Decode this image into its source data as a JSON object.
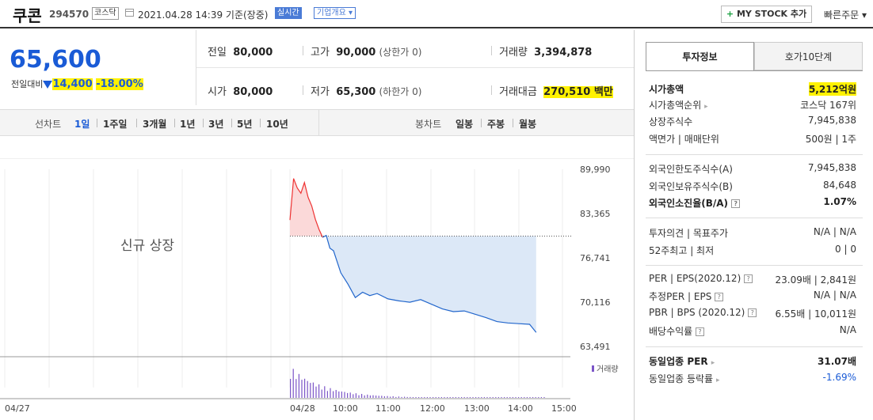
{
  "header": {
    "name": "쿠콘",
    "code": "294570",
    "market": "코스닥",
    "datetime": "2021.04.28 14:39 기준(장중)",
    "realtime": "실시간",
    "corp_info": "기업개요 ▾",
    "mystock_label": "MY STOCK 추가",
    "quick_order": "빠른주문 ▾"
  },
  "price": {
    "current": "65,600",
    "change_label": "전일대비",
    "change": "14,400",
    "change_pct": "-18.00%"
  },
  "summary": {
    "prev_label": "전일",
    "prev": "80,000",
    "high_label": "고가",
    "high": "90,000",
    "high_note": "(상한가 0)",
    "volume_label": "거래량",
    "volume": "3,394,878",
    "open_label": "시가",
    "open": "80,000",
    "low_label": "저가",
    "low": "65,300",
    "low_note": "(하한가 0)",
    "amount_label": "거래대금",
    "amount": "270,510",
    "amount_unit": "백만"
  },
  "period_tabs": {
    "line_label": "선차트",
    "line": [
      "1일",
      "1주일",
      "3개월",
      "1년",
      "3년",
      "5년",
      "10년"
    ],
    "candle_label": "봉차트",
    "candle": [
      "일봉",
      "주봉",
      "월봉"
    ]
  },
  "chart_data": {
    "type": "line",
    "annotation": "신규 상장",
    "yticks": [
      "89,990",
      "83,365",
      "76,741",
      "70,116",
      "63,491"
    ],
    "ylim": [
      63491,
      89990
    ],
    "xticks": [
      "04/27",
      "04/28",
      "10:00",
      "11:00",
      "12:00",
      "13:00",
      "14:00",
      "15:00"
    ],
    "reference_price": 80000,
    "volume_label": "거래량",
    "series": [
      {
        "name": "",
        "x": [
          "09:00",
          "09:05",
          "09:10",
          "09:15",
          "09:20",
          "09:25",
          "09:30",
          "09:35",
          "09:40",
          "09:45",
          "09:50",
          "09:55",
          "10:00",
          "10:10",
          "10:20",
          "10:30",
          "10:40",
          "10:50",
          "11:00",
          "11:15",
          "11:30",
          "11:45",
          "12:00",
          "12:15",
          "12:30",
          "12:45",
          "13:00",
          "13:15",
          "13:30",
          "13:45",
          "14:00",
          "14:15",
          "14:30",
          "14:39"
        ],
        "values": [
          82400,
          88600,
          87200,
          86400,
          88000,
          85800,
          84500,
          82500,
          81000,
          79800,
          80100,
          78200,
          77800,
          74500,
          72800,
          70800,
          71600,
          71100,
          71400,
          70600,
          70300,
          70100,
          70500,
          69800,
          69100,
          68700,
          68800,
          68300,
          67800,
          67200,
          67000,
          66900,
          66800,
          65600
        ]
      }
    ]
  },
  "invest_panel": {
    "tab1": "투자정보",
    "tab2": "호가10단계",
    "market_cap_label": "시가총액",
    "market_cap": "5,212억원",
    "cap_rank_label": "시가총액순위",
    "cap_rank": "코스닥 167위",
    "shares_label": "상장주식수",
    "shares": "7,945,838",
    "par_label": "액면가 | 매매단위",
    "par": "500원 | 1주",
    "foreign_limit_label": "외국인한도주식수(A)",
    "foreign_limit": "7,945,838",
    "foreign_hold_label": "외국인보유주식수(B)",
    "foreign_hold": "84,648",
    "foreign_ratio_label": "외국인소진율(B/A)",
    "foreign_ratio": "1.07%",
    "opinion_label": "투자의견 | 목표주가",
    "opinion": "N/A | N/A",
    "week52_label": "52주최고 | 최저",
    "week52": "0 | 0",
    "per_label": "PER | EPS(2020.12)",
    "per": "23.09배 | 2,841원",
    "est_per_label": "추정PER | EPS",
    "est_per": "N/A | N/A",
    "pbr_label": "PBR | BPS (2020.12)",
    "pbr": "6.55배 | 10,011원",
    "div_label": "배당수익률",
    "div": "N/A",
    "ind_per_label": "동일업종 PER",
    "ind_per": "31.07배",
    "ind_rate_label": "동일업종 등락률",
    "ind_rate": "-1.69%"
  }
}
